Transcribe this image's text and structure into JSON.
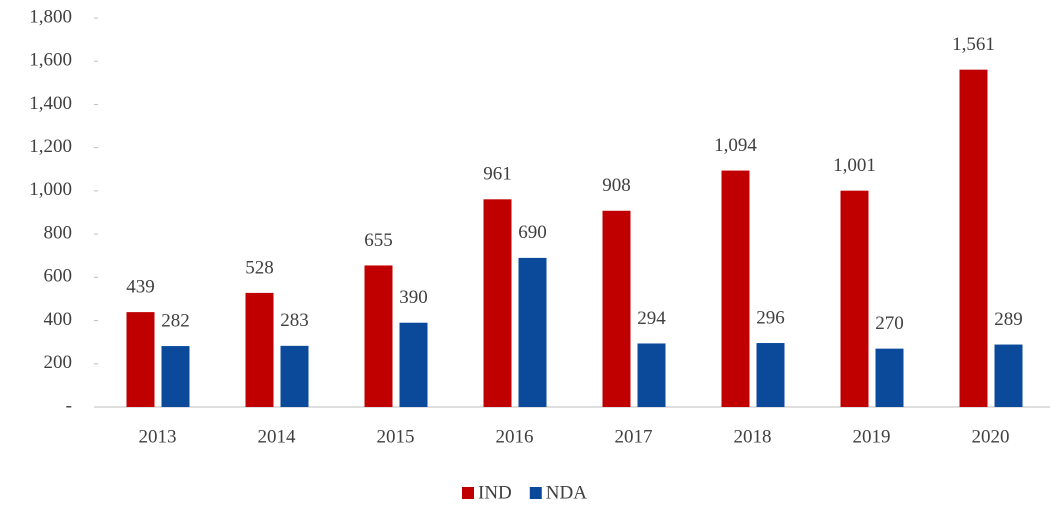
{
  "chart_data": {
    "type": "bar",
    "categories": [
      "2013",
      "2014",
      "2015",
      "2016",
      "2017",
      "2018",
      "2019",
      "2020"
    ],
    "series": [
      {
        "name": "IND",
        "color": "#c00000",
        "values": [
          439,
          528,
          655,
          961,
          908,
          1094,
          1001,
          1561
        ],
        "value_labels": [
          "439",
          "528",
          "655",
          "961",
          "908",
          "1,094",
          "1,001",
          "1,561"
        ]
      },
      {
        "name": "NDA",
        "color": "#0b4a9b",
        "values": [
          282,
          283,
          390,
          690,
          294,
          296,
          270,
          289
        ]
      }
    ],
    "ylim": [
      0,
      1800
    ],
    "yticks": [
      {
        "value": 0,
        "label": "-"
      },
      200,
      400,
      600,
      800,
      {
        "value": 1000,
        "label": "1,000"
      },
      {
        "value": 1200,
        "label": "1,200"
      },
      {
        "value": 1400,
        "label": "1,400"
      },
      {
        "value": 1600,
        "label": "1,600"
      },
      {
        "value": 1800,
        "label": "1,800"
      }
    ],
    "grid": false,
    "legend": "bottom"
  }
}
